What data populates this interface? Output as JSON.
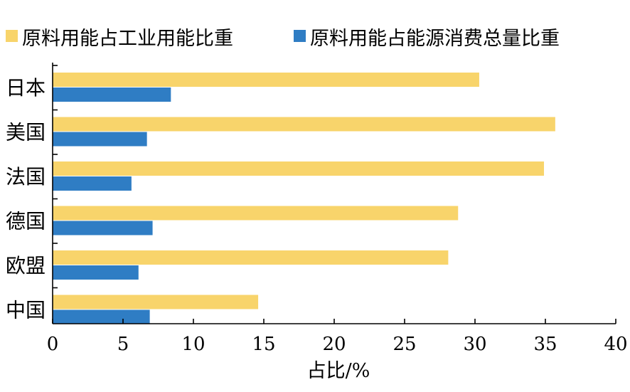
{
  "colors": {
    "series1": "#F8D46B",
    "series2": "#2F7DC4"
  },
  "chart_data": {
    "type": "bar",
    "orientation": "horizontal",
    "title": "",
    "categories": [
      "日本",
      "美国",
      "法国",
      "德国",
      "欧盟",
      "中国"
    ],
    "series": [
      {
        "name": "原料用能占工业用能比重",
        "values": [
          30.3,
          35.7,
          34.9,
          28.8,
          28.1,
          14.6
        ]
      },
      {
        "name": "原料用能占能源消费总量比重",
        "values": [
          8.4,
          6.7,
          5.6,
          7.1,
          6.1,
          6.9
        ]
      }
    ],
    "xlabel": "占比/%",
    "ylabel": "",
    "xlim": [
      0,
      40
    ],
    "xticks": [
      "0",
      "5",
      "10",
      "15",
      "20",
      "25",
      "30",
      "35",
      "40"
    ],
    "grid": false,
    "legend_position": "top"
  }
}
